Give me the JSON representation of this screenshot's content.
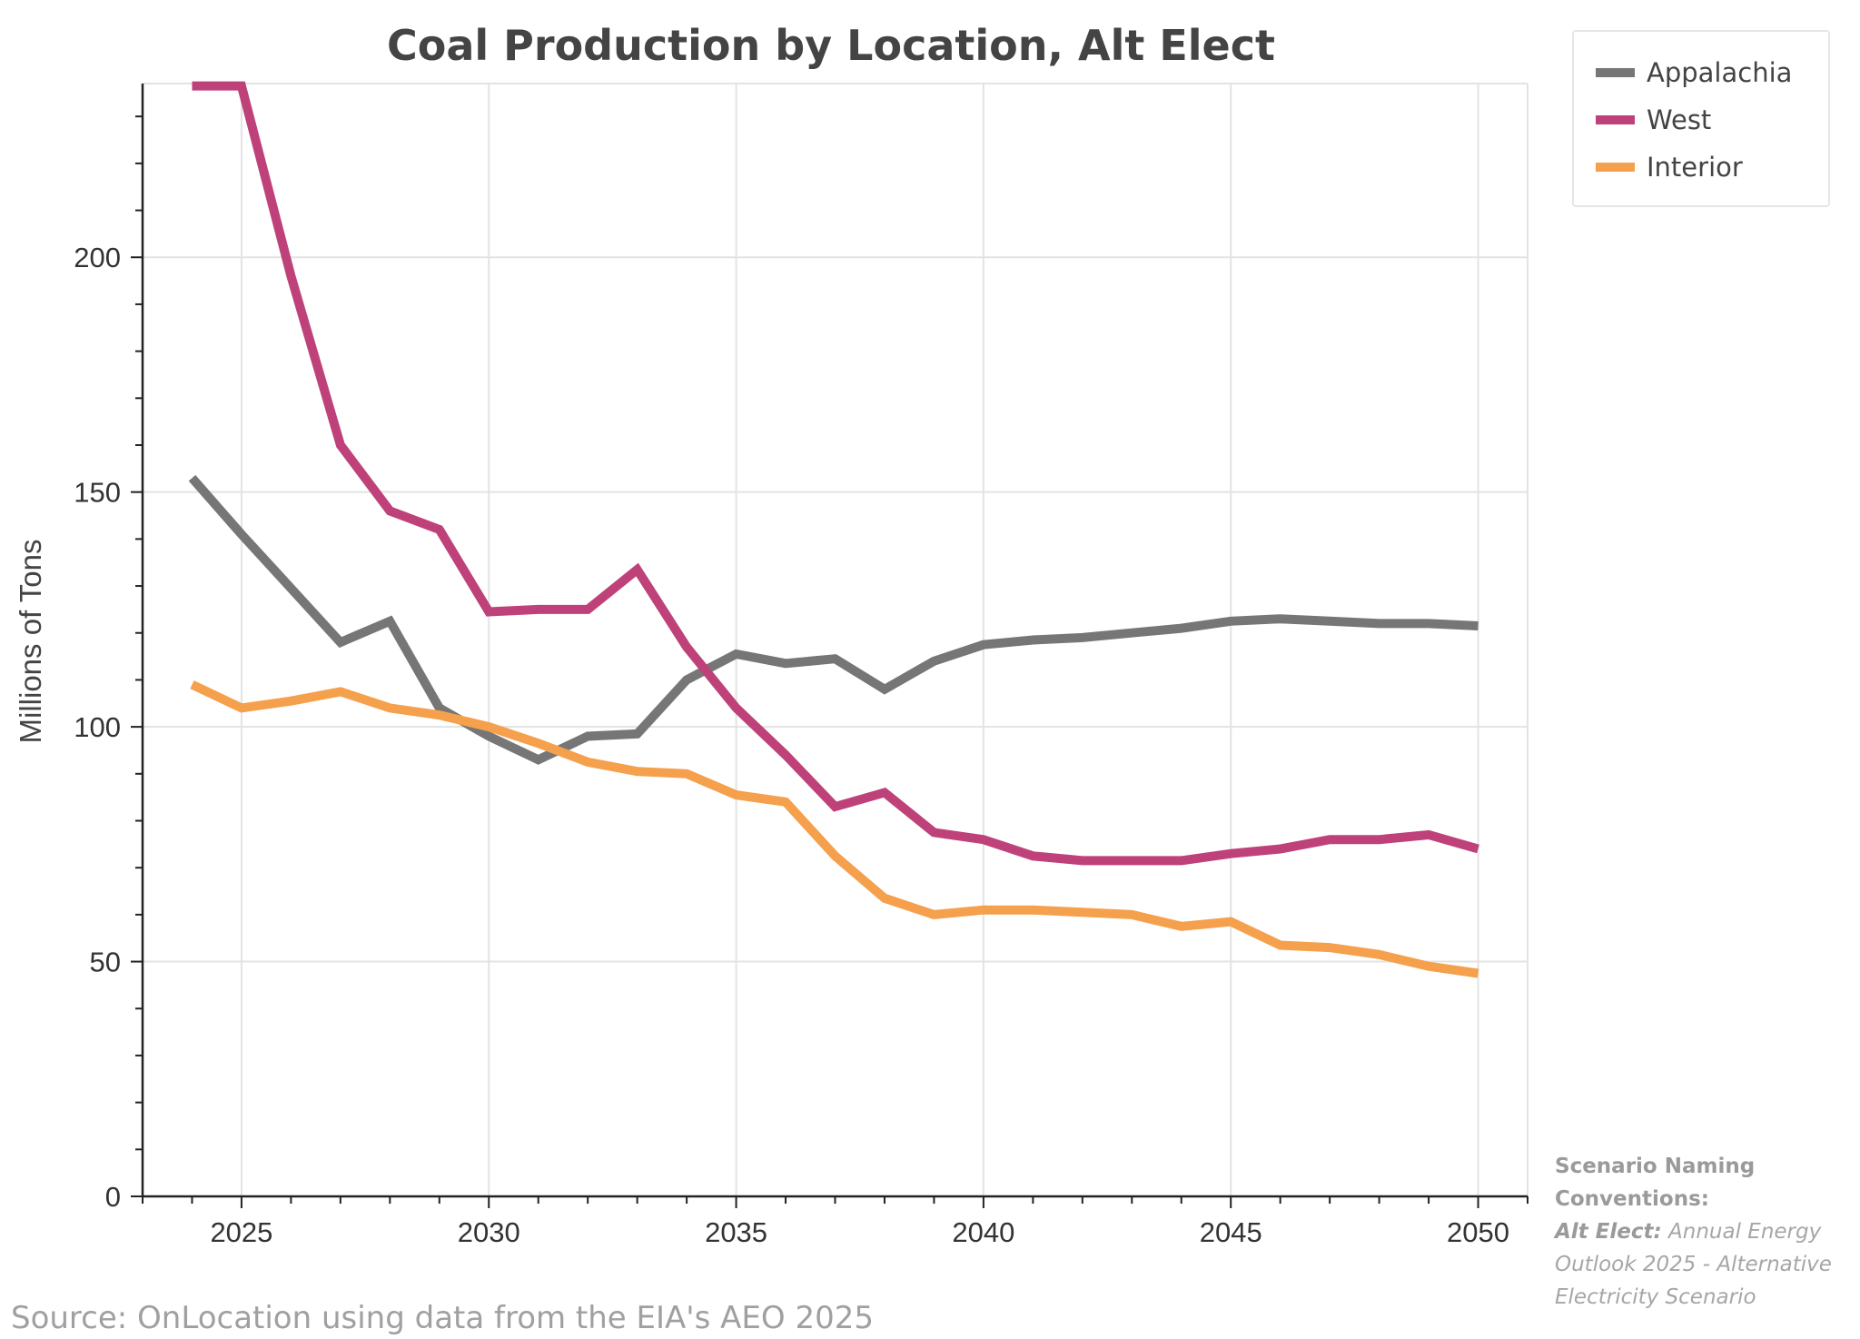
{
  "chart_data": {
    "type": "line",
    "title": "Coal Production by Location, Alt Elect",
    "xlabel": "",
    "ylabel": "Millions of Tons",
    "x": [
      2024,
      2025,
      2026,
      2027,
      2028,
      2029,
      2030,
      2031,
      2032,
      2033,
      2034,
      2035,
      2036,
      2037,
      2038,
      2039,
      2040,
      2041,
      2042,
      2043,
      2044,
      2045,
      2046,
      2047,
      2048,
      2049,
      2050
    ],
    "xlim": [
      2023,
      2051
    ],
    "ylim": [
      0,
      237
    ],
    "x_ticks": [
      "2025",
      "2030",
      "2035",
      "2040",
      "2045",
      "2050"
    ],
    "y_ticks": [
      "0",
      "50",
      "100",
      "150",
      "200"
    ],
    "grid": true,
    "legend_position": "outside-top-right",
    "series": [
      {
        "name": "Appalachia",
        "color": "#767676",
        "values": [
          153,
          141,
          129.5,
          118,
          122.5,
          104,
          98,
          93,
          98,
          98.5,
          110,
          115.5,
          113.5,
          114.5,
          108,
          114,
          117.5,
          118.5,
          119,
          120,
          121,
          122.5,
          123,
          122.5,
          122,
          122,
          121.5
        ]
      },
      {
        "name": "West",
        "color": "#be4279",
        "values": [
          236.5,
          236.5,
          196,
          160,
          146,
          142,
          124.5,
          125,
          125,
          133.5,
          117,
          104,
          94,
          83,
          86,
          77.5,
          76,
          72.5,
          71.5,
          71.5,
          71.5,
          73,
          74,
          76,
          76,
          77,
          74
        ]
      },
      {
        "name": "Interior",
        "color": "#f5a04c",
        "values": [
          109,
          104,
          105.5,
          107.5,
          104,
          102.5,
          100,
          96.5,
          92.5,
          90.5,
          90,
          85.5,
          84,
          72.5,
          63.5,
          60,
          61,
          61,
          60.5,
          60,
          57.5,
          58.5,
          53.5,
          53,
          51.5,
          49,
          47.5
        ]
      }
    ]
  },
  "source": "Source: OnLocation using data from the EIA's AEO 2025",
  "note": {
    "heading_line1": "Scenario Naming",
    "heading_line2": "Conventions:",
    "term": "Alt Elect:",
    "desc_line1": " Annual Energy",
    "desc_line2": "Outlook 2025 - Alternative",
    "desc_line3": "Electricity Scenario"
  }
}
